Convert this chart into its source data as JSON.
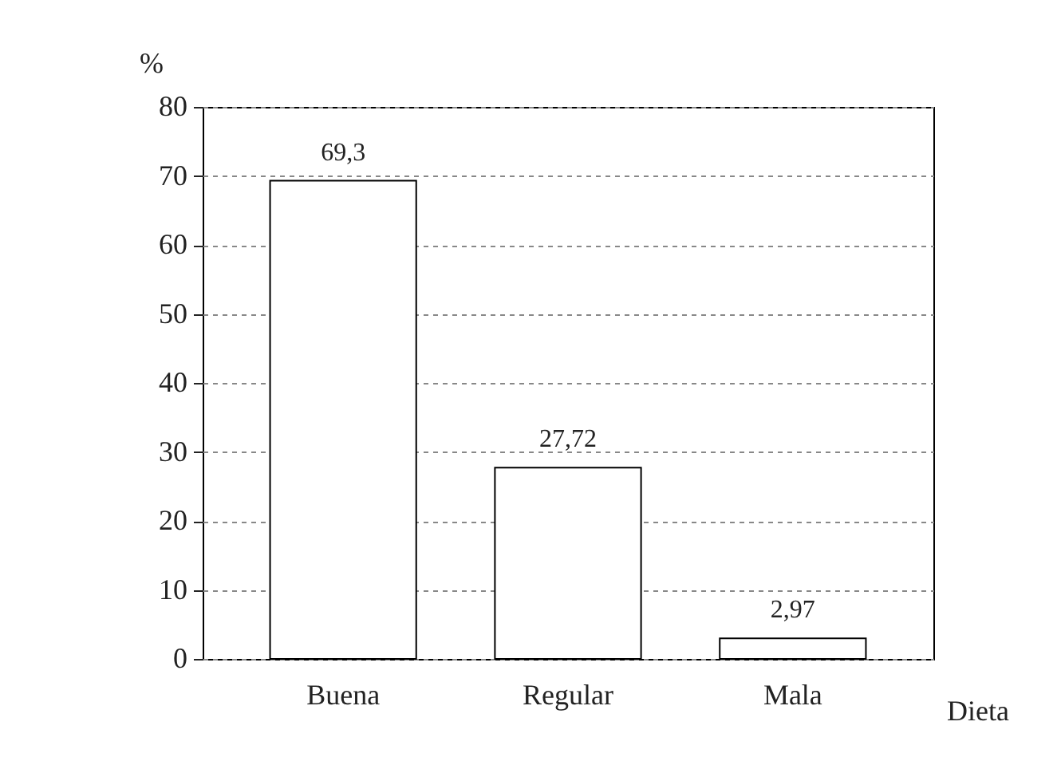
{
  "chart_data": {
    "type": "bar",
    "xlabel": "Dieta",
    "ylabel": "%",
    "categories": [
      "Buena",
      "Regular",
      "Mala"
    ],
    "values": [
      69.3,
      27.72,
      2.97
    ],
    "value_labels": [
      "69,3",
      "27,72",
      "2,97"
    ],
    "color": "#ffffff",
    "ylim": [
      0,
      80
    ],
    "yticks": [
      0,
      10,
      20,
      30,
      40,
      50,
      60,
      70,
      80
    ],
    "grid": "y"
  }
}
